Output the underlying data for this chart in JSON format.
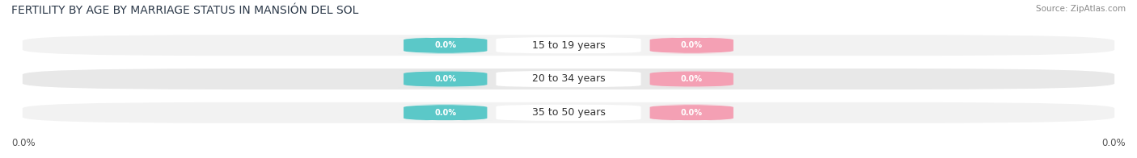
{
  "title": "FERTILITY BY AGE BY MARRIAGE STATUS IN MANSIÓN DEL SOL",
  "source": "Source: ZipAtlas.com",
  "categories": [
    "15 to 19 years",
    "20 to 34 years",
    "35 to 50 years"
  ],
  "married_values": [
    0.0,
    0.0,
    0.0
  ],
  "unmarried_values": [
    0.0,
    0.0,
    0.0
  ],
  "married_color": "#5bc8c8",
  "unmarried_color": "#f4a0b4",
  "row_bg_color_light": "#f2f2f2",
  "row_bg_color_dark": "#e8e8e8",
  "axis_label_left": "0.0%",
  "axis_label_right": "0.0%",
  "title_fontsize": 10,
  "source_fontsize": 7.5,
  "tick_fontsize": 8.5,
  "legend_fontsize": 8.5,
  "cat_fontsize": 9,
  "val_fontsize": 7,
  "background_color": "#ffffff"
}
